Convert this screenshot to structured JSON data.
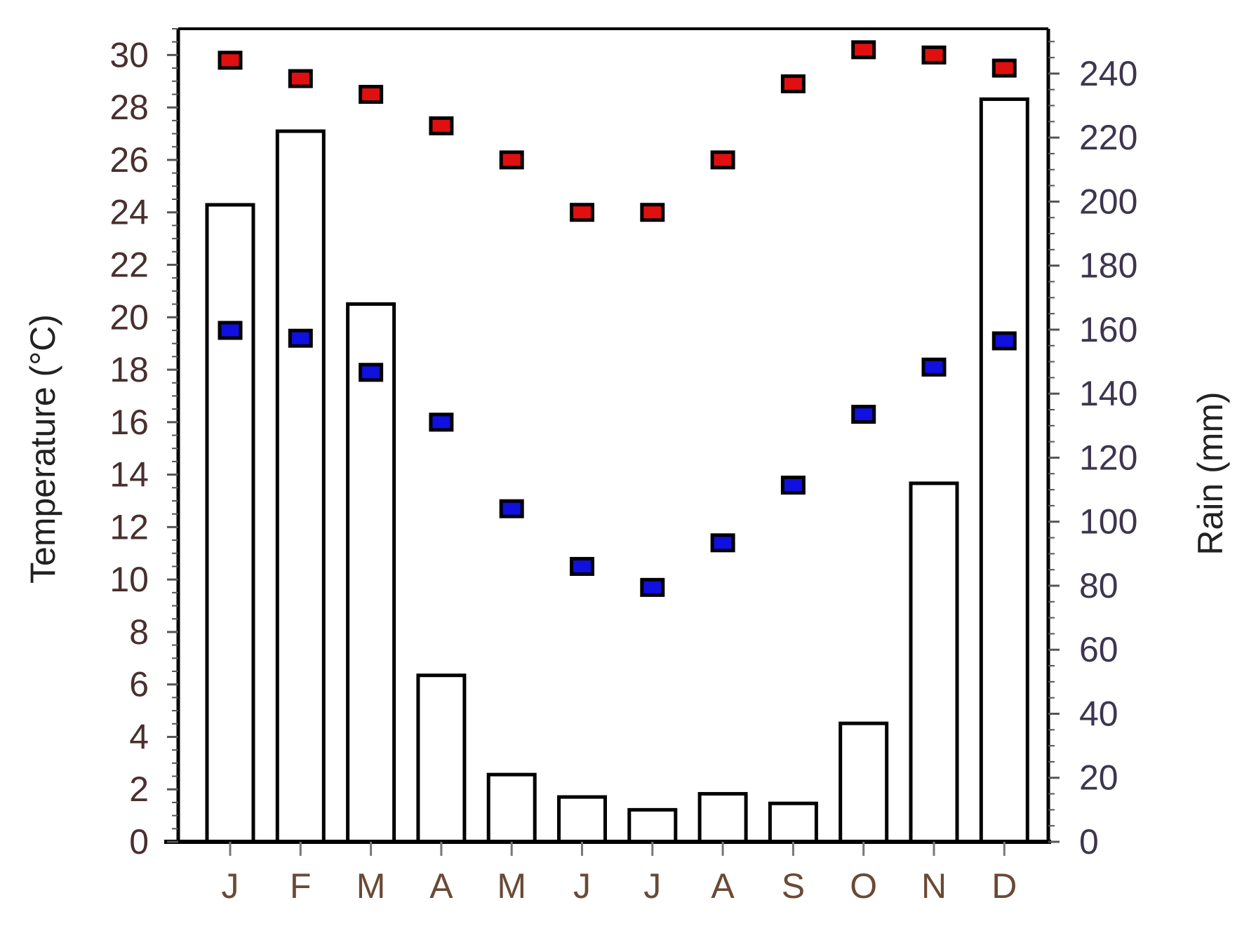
{
  "chart_data": {
    "type": "bar",
    "title": "",
    "categories": [
      "J",
      "F",
      "M",
      "A",
      "M",
      "J",
      "J",
      "A",
      "S",
      "O",
      "N",
      "D"
    ],
    "ylabel_left": "Temperature (°C)",
    "ylabel_right": "Rain (mm)",
    "left_axis": {
      "min": 0,
      "max": 31,
      "ticks": [
        0,
        2,
        4,
        6,
        8,
        10,
        12,
        14,
        16,
        18,
        20,
        22,
        24,
        26,
        28,
        30
      ]
    },
    "right_axis": {
      "min": 0,
      "max": 254,
      "ticks": [
        0,
        20,
        40,
        60,
        80,
        100,
        120,
        140,
        160,
        180,
        200,
        220,
        240
      ]
    },
    "series": [
      {
        "kind": "bar",
        "axis": "right",
        "values": [
          199,
          222,
          168,
          52,
          21,
          14,
          10,
          15,
          12,
          37,
          112,
          232
        ]
      },
      {
        "kind": "marker",
        "axis": "left",
        "color": "#e01010",
        "values": [
          29.8,
          29.1,
          28.5,
          27.3,
          26.0,
          24.0,
          24.0,
          26.0,
          28.9,
          30.2,
          30.0,
          29.5
        ]
      },
      {
        "kind": "marker",
        "axis": "left",
        "color": "#1010e0",
        "values": [
          19.5,
          19.2,
          17.9,
          16.0,
          12.7,
          10.5,
          9.7,
          11.4,
          13.6,
          16.3,
          18.1,
          19.1
        ]
      }
    ],
    "grid": false,
    "legend": "none"
  }
}
